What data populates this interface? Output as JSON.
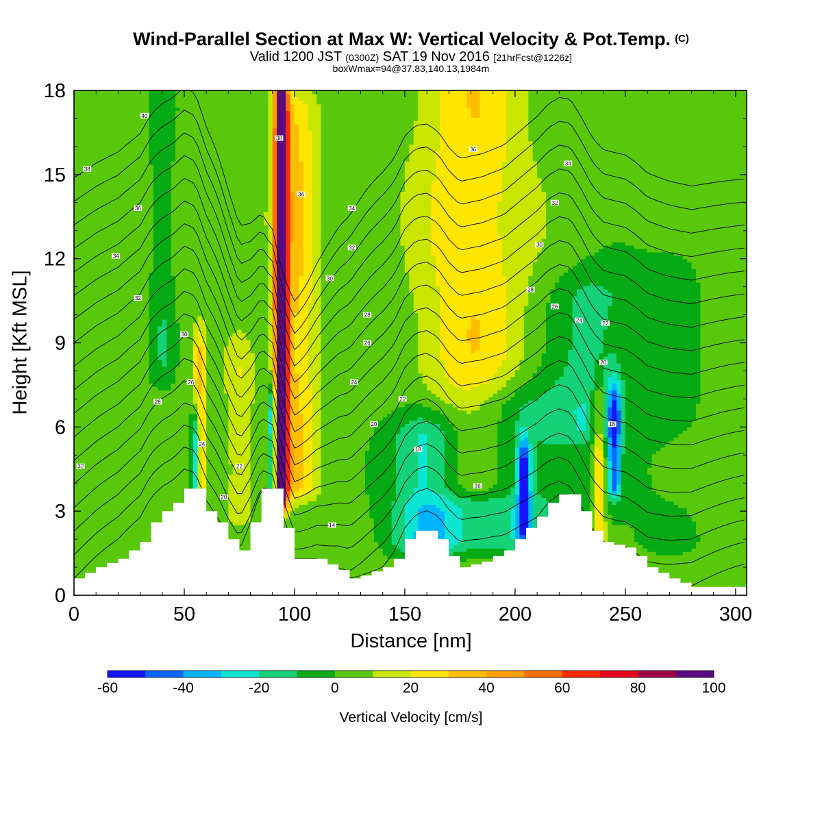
{
  "header": {
    "title": "Wind-Parallel Section at Max W: Vertical Velocity & Pot.Temp.",
    "copyright": "(C)",
    "valid_prefix": "Valid 1200 JST",
    "valid_utc": "(0300Z)",
    "valid_date": "SAT 19 Nov 2016",
    "forecast": "[21hrFcst@1226z]",
    "box_info": "boxWmax=94@37.83,140.13,1984m"
  },
  "chart_data": {
    "type": "heatmap",
    "xlabel": "Distance [nm]",
    "ylabel": "Height [Kft MSL]",
    "xlim": [
      0,
      305
    ],
    "ylim": [
      0,
      18
    ],
    "xticks": [
      0,
      50,
      100,
      150,
      200,
      250,
      300
    ],
    "yticks": [
      0,
      3,
      6,
      9,
      12,
      15,
      18
    ],
    "colorbar": {
      "label": "Vertical Velocity [cm/s]",
      "levels": [
        -60,
        -50,
        -40,
        -30,
        -20,
        -10,
        0,
        10,
        20,
        30,
        40,
        50,
        60,
        70,
        80,
        90,
        100
      ],
      "tick_labels": [
        "-60",
        "-40",
        "-20",
        "0",
        "20",
        "40",
        "60",
        "80",
        "100"
      ],
      "colors": [
        "#1414ff",
        "#0a64ff",
        "#00b4ff",
        "#0ae6d2",
        "#14d278",
        "#05aa14",
        "#5ac80a",
        "#c8e600",
        "#ffe600",
        "#ffbe00",
        "#ffa000",
        "#ff6e00",
        "#ff2800",
        "#e6001e",
        "#a00046",
        "#5a0a82"
      ]
    },
    "terrain": [
      [
        0,
        0.6
      ],
      [
        10,
        1.0
      ],
      [
        20,
        1.3
      ],
      [
        30,
        1.9
      ],
      [
        35,
        2.6
      ],
      [
        40,
        3.0
      ],
      [
        45,
        3.3
      ],
      [
        50,
        3.8
      ],
      [
        55,
        3.8
      ],
      [
        60,
        3.0
      ],
      [
        65,
        2.6
      ],
      [
        70,
        2.0
      ],
      [
        75,
        1.6
      ],
      [
        80,
        2.6
      ],
      [
        85,
        3.8
      ],
      [
        90,
        3.8
      ],
      [
        95,
        2.4
      ],
      [
        100,
        1.3
      ],
      [
        110,
        1.3
      ],
      [
        120,
        0.9
      ],
      [
        125,
        0.6
      ],
      [
        130,
        0.7
      ],
      [
        140,
        1.0
      ],
      [
        145,
        1.3
      ],
      [
        150,
        2.0
      ],
      [
        155,
        2.3
      ],
      [
        160,
        2.3
      ],
      [
        165,
        2.0
      ],
      [
        170,
        1.4
      ],
      [
        175,
        1.0
      ],
      [
        185,
        1.2
      ],
      [
        195,
        1.6
      ],
      [
        200,
        2.0
      ],
      [
        205,
        2.4
      ],
      [
        210,
        2.8
      ],
      [
        215,
        3.3
      ],
      [
        220,
        3.6
      ],
      [
        225,
        3.6
      ],
      [
        230,
        3.0
      ],
      [
        235,
        2.3
      ],
      [
        240,
        1.9
      ],
      [
        250,
        1.7
      ],
      [
        255,
        1.4
      ],
      [
        260,
        1.0
      ],
      [
        270,
        0.6
      ],
      [
        280,
        0.3
      ],
      [
        290,
        0.3
      ],
      [
        300,
        0.3
      ]
    ],
    "updrafts": [
      {
        "x": 94,
        "width": 3,
        "z_bottom": 3.6,
        "z_top": 18,
        "peak": 94
      },
      {
        "x": 100,
        "width": 10,
        "z_bottom": 4.0,
        "z_top": 17,
        "peak": 28
      },
      {
        "x": 57,
        "width": 3,
        "z_bottom": 4.0,
        "z_top": 8.5,
        "peak": 28
      },
      {
        "x": 180,
        "width": 24,
        "z_bottom": 4.0,
        "z_top": 18,
        "peak": 24
      },
      {
        "x": 238,
        "width": 3,
        "z_bottom": 2.0,
        "z_top": 6.5,
        "peak": 30
      },
      {
        "x": 75,
        "width": 6,
        "z_bottom": 3.0,
        "z_top": 8.0,
        "peak": 14
      }
    ],
    "downdrafts": [
      {
        "x": 55,
        "width": 2,
        "z_bottom": 3.6,
        "z_top": 5.5,
        "peak": -45
      },
      {
        "x": 90,
        "width": 2,
        "z_bottom": 3.6,
        "z_top": 6.5,
        "peak": -50
      },
      {
        "x": 160,
        "width": 16,
        "z_bottom": 2.0,
        "z_top": 5.5,
        "peak": -35
      },
      {
        "x": 204,
        "width": 3,
        "z_bottom": 2.5,
        "z_top": 4.5,
        "peak": -55
      },
      {
        "x": 245,
        "width": 3,
        "z_bottom": 4.0,
        "z_top": 6.5,
        "peak": -45
      },
      {
        "x": 200,
        "width": 30,
        "z_bottom": 2.0,
        "z_top": 6.5,
        "peak": -22
      },
      {
        "x": 235,
        "width": 18,
        "z_bottom": 6.0,
        "z_top": 10.5,
        "peak": -18
      },
      {
        "x": 40,
        "width": 5,
        "z_bottom": 8.0,
        "z_top": 17.0,
        "peak": -12
      },
      {
        "x": 270,
        "width": 20,
        "z_bottom": 2.0,
        "z_top": 12.0,
        "peak": -6
      }
    ],
    "isentropes": [
      10,
      12,
      14,
      16,
      18,
      20,
      22,
      24,
      26,
      28,
      30,
      32,
      34,
      36,
      38,
      40,
      42,
      44
    ],
    "isentrope_labels": [
      {
        "x": 32,
        "z": 17.1,
        "text": "40"
      },
      {
        "x": 6,
        "z": 15.2,
        "text": "38"
      },
      {
        "x": 93,
        "z": 16.3,
        "text": "38"
      },
      {
        "x": 181,
        "z": 15.9,
        "text": "36"
      },
      {
        "x": 224,
        "z": 15.4,
        "text": "34"
      },
      {
        "x": 29,
        "z": 13.8,
        "text": "36"
      },
      {
        "x": 103,
        "z": 14.3,
        "text": "36"
      },
      {
        "x": 218,
        "z": 14.0,
        "text": "32"
      },
      {
        "x": 126,
        "z": 13.8,
        "text": "34"
      },
      {
        "x": 19,
        "z": 12.1,
        "text": "34"
      },
      {
        "x": 126,
        "z": 12.4,
        "text": "32"
      },
      {
        "x": 211,
        "z": 12.5,
        "text": "30"
      },
      {
        "x": 29,
        "z": 10.6,
        "text": "32"
      },
      {
        "x": 116,
        "z": 11.3,
        "text": "30"
      },
      {
        "x": 207,
        "z": 10.9,
        "text": "28"
      },
      {
        "x": 218,
        "z": 10.3,
        "text": "26"
      },
      {
        "x": 133,
        "z": 10.0,
        "text": "28"
      },
      {
        "x": 229,
        "z": 9.8,
        "text": "24"
      },
      {
        "x": 241,
        "z": 9.7,
        "text": "22"
      },
      {
        "x": 50,
        "z": 9.3,
        "text": "30"
      },
      {
        "x": 133,
        "z": 9.0,
        "text": "26"
      },
      {
        "x": 240,
        "z": 8.3,
        "text": "20"
      },
      {
        "x": 53,
        "z": 7.6,
        "text": "26"
      },
      {
        "x": 127,
        "z": 7.6,
        "text": "24"
      },
      {
        "x": 38,
        "z": 6.9,
        "text": "28"
      },
      {
        "x": 149,
        "z": 7.0,
        "text": "22"
      },
      {
        "x": 136,
        "z": 6.1,
        "text": "20"
      },
      {
        "x": 244,
        "z": 6.1,
        "text": "18"
      },
      {
        "x": 58,
        "z": 5.4,
        "text": "24"
      },
      {
        "x": 156,
        "z": 5.2,
        "text": "18"
      },
      {
        "x": 3,
        "z": 4.6,
        "text": "32"
      },
      {
        "x": 75,
        "z": 4.6,
        "text": "22"
      },
      {
        "x": 183,
        "z": 3.9,
        "text": "16"
      },
      {
        "x": 68,
        "z": 3.5,
        "text": "20"
      },
      {
        "x": 117,
        "z": 2.5,
        "text": "14"
      }
    ]
  }
}
